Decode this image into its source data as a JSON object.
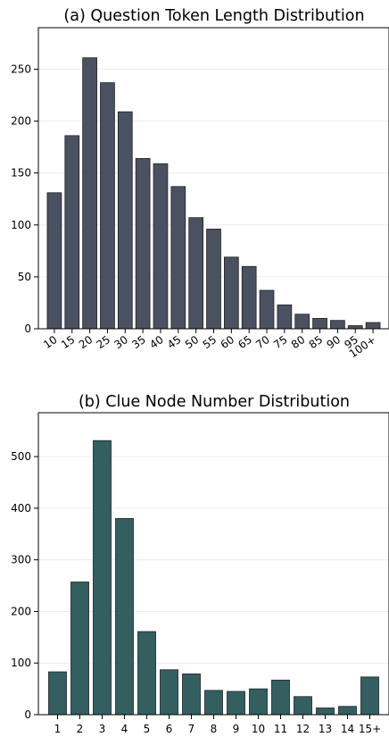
{
  "chart_data": [
    {
      "type": "bar",
      "title": "(a) Question Token Length Distribution",
      "xlabel": "",
      "ylabel": "",
      "categories": [
        "10",
        "15",
        "20",
        "25",
        "30",
        "35",
        "40",
        "45",
        "50",
        "55",
        "60",
        "65",
        "70",
        "75",
        "80",
        "85",
        "90",
        "95",
        "100+"
      ],
      "values": [
        131,
        186,
        261,
        237,
        209,
        164,
        159,
        137,
        107,
        96,
        69,
        60,
        37,
        23,
        14,
        10,
        8,
        3,
        6
      ],
      "yticks": [
        0,
        50,
        100,
        150,
        200,
        250
      ],
      "ylim": [
        0,
        290
      ],
      "grid": "horizontal",
      "color": "#4a5261"
    },
    {
      "type": "bar",
      "title": "(b) Clue Node Number Distribution",
      "xlabel": "",
      "ylabel": "",
      "categories": [
        "1",
        "2",
        "3",
        "4",
        "5",
        "6",
        "7",
        "8",
        "9",
        "10",
        "11",
        "12",
        "13",
        "14",
        "15+"
      ],
      "values": [
        83,
        257,
        531,
        380,
        161,
        87,
        79,
        47,
        45,
        50,
        67,
        35,
        13,
        16,
        73
      ],
      "yticks": [
        0,
        100,
        200,
        300,
        400,
        500
      ],
      "ylim": [
        0,
        585
      ],
      "grid": "horizontal",
      "color": "#335f61"
    }
  ]
}
